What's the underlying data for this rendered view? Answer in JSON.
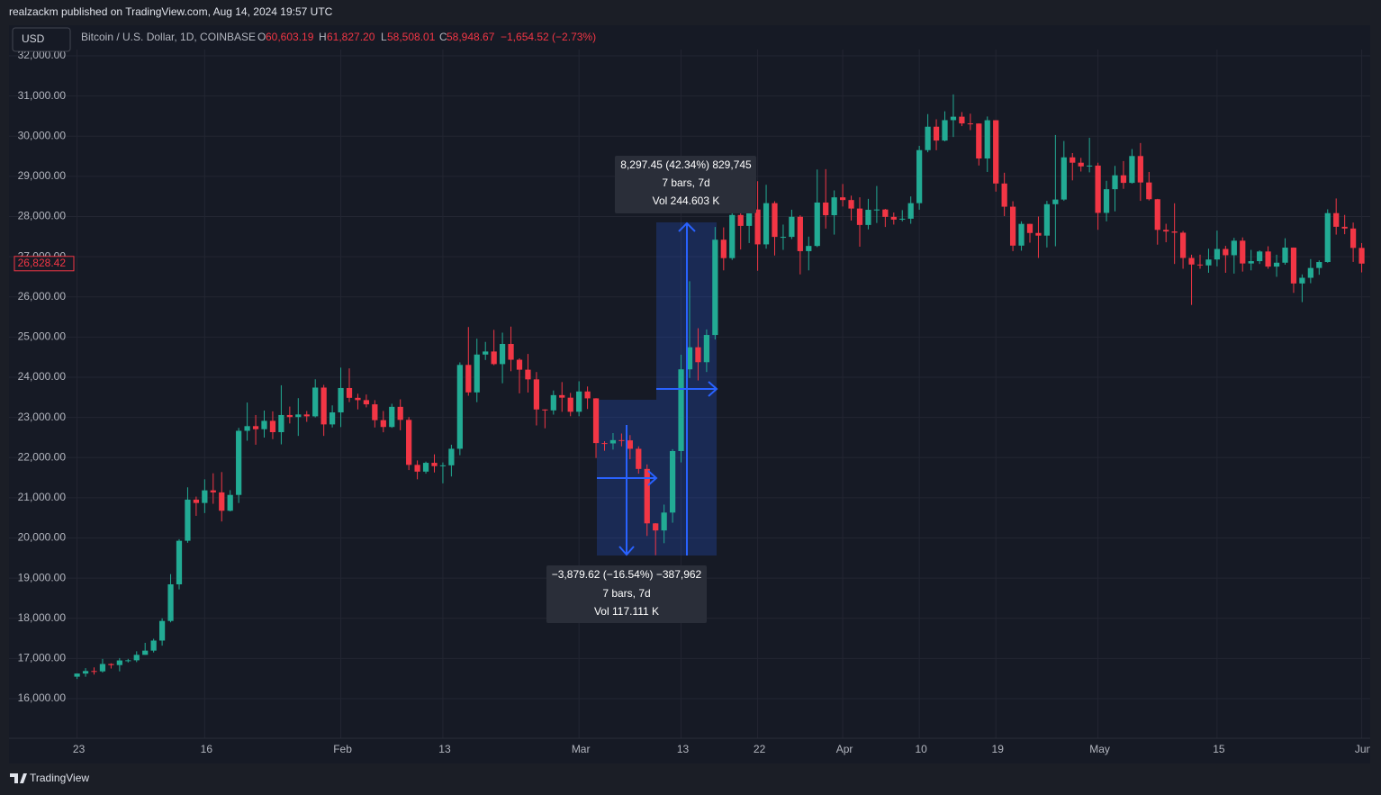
{
  "header": {
    "publisher": "realzackm published on TradingView.com, Aug 14, 2024 19:57 UTC",
    "currency": "USD",
    "symbol": "Bitcoin / U.S. Dollar, 1D, COINBASE",
    "legend": {
      "o_label": "O",
      "o": "60,603.19",
      "h_label": "H",
      "h": "61,827.20",
      "l_label": "L",
      "l": "58,508.01",
      "c_label": "C",
      "c": "58,948.67",
      "change": "−1,654.52 (−2.73%)"
    }
  },
  "footer": {
    "brand": "TradingView"
  },
  "chart_data": {
    "type": "candlestick",
    "up_color": "#22ab94",
    "down_color": "#f23645",
    "grid": true,
    "xlim": [
      "2022-12-24",
      "2023-06-02"
    ],
    "xticks": [
      {
        "value": "2023-01-01",
        "label": "23"
      },
      {
        "value": "2023-01-16",
        "label": "16"
      },
      {
        "value": "2023-02-01",
        "label": "Feb"
      },
      {
        "value": "2023-02-13",
        "label": "13"
      },
      {
        "value": "2023-03-01",
        "label": "Mar"
      },
      {
        "value": "2023-03-13",
        "label": "13"
      },
      {
        "value": "2023-03-22",
        "label": "22"
      },
      {
        "value": "2023-04-01",
        "label": "Apr"
      },
      {
        "value": "2023-04-10",
        "label": "10"
      },
      {
        "value": "2023-04-19",
        "label": "19"
      },
      {
        "value": "2023-05-01",
        "label": "May"
      },
      {
        "value": "2023-05-15",
        "label": "15"
      },
      {
        "value": "2023-06-01",
        "label": "Jun"
      }
    ],
    "ylim": [
      15014,
      32762
    ],
    "yticks": [
      {
        "value": 16000,
        "label": "16,000.00"
      },
      {
        "value": 17000,
        "label": "17,000.00"
      },
      {
        "value": 18000,
        "label": "18,000.00"
      },
      {
        "value": 19000,
        "label": "19,000.00"
      },
      {
        "value": 20000,
        "label": "20,000.00"
      },
      {
        "value": 21000,
        "label": "21,000.00"
      },
      {
        "value": 22000,
        "label": "22,000.00"
      },
      {
        "value": 23000,
        "label": "23,000.00"
      },
      {
        "value": 24000,
        "label": "24,000.00"
      },
      {
        "value": 25000,
        "label": "25,000.00"
      },
      {
        "value": 26000,
        "label": "26,000.00"
      },
      {
        "value": 27000,
        "label": "27,000.00"
      },
      {
        "value": 28000,
        "label": "28,000.00"
      },
      {
        "value": 29000,
        "label": "29,000.00"
      },
      {
        "value": 30000,
        "label": "30,000.00"
      },
      {
        "value": 31000,
        "label": "31,000.00"
      },
      {
        "value": 32000,
        "label": "32,000.00"
      }
    ],
    "last_price": {
      "value": 26828.42,
      "label": "26,828.42"
    },
    "annotations": [
      {
        "lines": [
          "8,297.45 (42.34%) 829,745",
          "7 bars, 7d",
          "Vol 244.603 K"
        ]
      },
      {
        "lines": [
          "−3,879.62 (−16.54%) −387,962",
          "7 bars, 7d",
          "Vol 117.111 K"
        ]
      }
    ],
    "x": [
      "2023-01-01",
      "2023-01-02",
      "2023-01-03",
      "2023-01-04",
      "2023-01-05",
      "2023-01-06",
      "2023-01-07",
      "2023-01-08",
      "2023-01-09",
      "2023-01-10",
      "2023-01-11",
      "2023-01-12",
      "2023-01-13",
      "2023-01-14",
      "2023-01-15",
      "2023-01-16",
      "2023-01-17",
      "2023-01-18",
      "2023-01-19",
      "2023-01-20",
      "2023-01-21",
      "2023-01-22",
      "2023-01-23",
      "2023-01-24",
      "2023-01-25",
      "2023-01-26",
      "2023-01-27",
      "2023-01-28",
      "2023-01-29",
      "2023-01-30",
      "2023-01-31",
      "2023-02-01",
      "2023-02-02",
      "2023-02-03",
      "2023-02-04",
      "2023-02-05",
      "2023-02-06",
      "2023-02-07",
      "2023-02-08",
      "2023-02-09",
      "2023-02-10",
      "2023-02-11",
      "2023-02-12",
      "2023-02-13",
      "2023-02-14",
      "2023-02-15",
      "2023-02-16",
      "2023-02-17",
      "2023-02-18",
      "2023-02-19",
      "2023-02-20",
      "2023-02-21",
      "2023-02-22",
      "2023-02-23",
      "2023-02-24",
      "2023-02-25",
      "2023-02-26",
      "2023-02-27",
      "2023-02-28",
      "2023-03-01",
      "2023-03-02",
      "2023-03-03",
      "2023-03-04",
      "2023-03-05",
      "2023-03-06",
      "2023-03-07",
      "2023-03-08",
      "2023-03-09",
      "2023-03-10",
      "2023-03-11",
      "2023-03-12",
      "2023-03-13",
      "2023-03-14",
      "2023-03-15",
      "2023-03-16",
      "2023-03-17",
      "2023-03-18",
      "2023-03-19",
      "2023-03-20",
      "2023-03-21",
      "2023-03-22",
      "2023-03-23",
      "2023-03-24",
      "2023-03-25",
      "2023-03-26",
      "2023-03-27",
      "2023-03-28",
      "2023-03-29",
      "2023-03-30",
      "2023-03-31",
      "2023-04-01",
      "2023-04-02",
      "2023-04-03",
      "2023-04-04",
      "2023-04-05",
      "2023-04-06",
      "2023-04-07",
      "2023-04-08",
      "2023-04-09",
      "2023-04-10",
      "2023-04-11",
      "2023-04-12",
      "2023-04-13",
      "2023-04-14",
      "2023-04-15",
      "2023-04-16",
      "2023-04-17",
      "2023-04-18",
      "2023-04-19",
      "2023-04-20",
      "2023-04-21",
      "2023-04-22",
      "2023-04-23",
      "2023-04-24",
      "2023-04-25",
      "2023-04-26",
      "2023-04-27",
      "2023-04-28",
      "2023-04-29",
      "2023-04-30",
      "2023-05-01",
      "2023-05-02",
      "2023-05-03",
      "2023-05-04",
      "2023-05-05",
      "2023-05-06",
      "2023-05-07",
      "2023-05-08",
      "2023-05-09",
      "2023-05-10",
      "2023-05-11",
      "2023-05-12",
      "2023-05-13",
      "2023-05-14",
      "2023-05-15",
      "2023-05-16",
      "2023-05-17",
      "2023-05-18",
      "2023-05-19",
      "2023-05-20",
      "2023-05-21",
      "2023-05-22",
      "2023-05-23",
      "2023-05-24",
      "2023-05-25",
      "2023-05-26",
      "2023-05-27",
      "2023-05-28",
      "2023-05-29",
      "2023-05-30",
      "2023-05-31",
      "2023-06-01"
    ],
    "open": [
      16547,
      16625,
      16688,
      16680,
      16863,
      16836,
      16951,
      16955,
      17091,
      17196,
      17446,
      17934,
      18846,
      19930,
      20954,
      20871,
      21185,
      21134,
      20677,
      21071,
      22667,
      22783,
      22707,
      22915,
      22633,
      23060,
      23009,
      23074,
      23027,
      23743,
      22826,
      23125,
      23732,
      23488,
      23431,
      23326,
      22932,
      22762,
      23264,
      22939,
      21819,
      21651,
      21870,
      21788,
      21808,
      22220,
      24307,
      23623,
      24565,
      24641,
      24327,
      24829,
      24436,
      24188,
      23947,
      23198,
      23175,
      23555,
      23492,
      23141,
      23646,
      23475,
      22362,
      22353,
      22435,
      22429,
      22219,
      21718,
      20363,
      20187,
      20632,
      22163,
      24197,
      24746,
      24375,
      25052,
      27423,
      26965,
      28038,
      27767,
      28175,
      27307,
      28333,
      27493,
      27494,
      27994,
      27139,
      27268,
      28348,
      28033,
      28478,
      28411,
      28199,
      27790,
      28168,
      28175,
      27992,
      27923,
      27946,
      28333,
      29653,
      30236,
      29891,
      30399,
      30485,
      30318,
      30315,
      29445,
      30397,
      28822,
      28245,
      27276,
      27817,
      27591,
      27525,
      28307,
      28423,
      29473,
      29340,
      29248,
      29268,
      28091,
      28680,
      29026,
      28838,
      29506,
      28848,
      28431,
      27668,
      27628,
      27598,
      26969,
      26805,
      26784,
      26931,
      27192,
      27037,
      27399,
      26832,
      26890,
      27130,
      26754,
      26851,
      27226,
      26334,
      26476,
      26720,
      26868,
      28085,
      27745,
      27702,
      27219
    ],
    "high": [
      16630,
      16760,
      16780,
      16990,
      16880,
      17010,
      16990,
      17180,
      17390,
      17490,
      18000,
      19100,
      19970,
      21260,
      21030,
      21460,
      21610,
      21640,
      21190,
      22740,
      23370,
      23060,
      23170,
      23150,
      23800,
      23270,
      23480,
      23160,
      23950,
      23810,
      23300,
      24240,
      24220,
      23590,
      23570,
      23430,
      23160,
      23340,
      23450,
      23010,
      21930,
      21900,
      22080,
      21880,
      22320,
      24370,
      25250,
      24960,
      24880,
      25180,
      25110,
      25260,
      24470,
      24580,
      24130,
      23200,
      23670,
      23880,
      23610,
      23900,
      23770,
      23480,
      22410,
      22610,
      22600,
      22560,
      22280,
      21830,
      20370,
      20830,
      22210,
      24560,
      26390,
      25220,
      25190,
      27740,
      27730,
      28420,
      28470,
      28550,
      28880,
      28790,
      28380,
      27800,
      28170,
      28030,
      27500,
      29170,
      29180,
      28650,
      28810,
      28520,
      28480,
      28440,
      28760,
      28190,
      28100,
      28160,
      28500,
      29760,
      30550,
      30420,
      30620,
      31040,
      30600,
      30560,
      30320,
      30490,
      30400,
      29090,
      28380,
      27880,
      27820,
      28000,
      28390,
      30030,
      29880,
      29580,
      29460,
      29960,
      29340,
      28890,
      29260,
      29380,
      29680,
      29830,
      29110,
      28440,
      27820,
      28330,
      27640,
      27050,
      27050,
      27200,
      27650,
      27270,
      27470,
      27480,
      27170,
      27160,
      27260,
      27050,
      27460,
      27230,
      26560,
      26940,
      26910,
      28180,
      28450,
      28040,
      27850,
      27340
    ],
    "low": [
      16490,
      16545,
      16600,
      16650,
      16750,
      16680,
      16900,
      16910,
      17090,
      17150,
      17320,
      17900,
      18720,
      19880,
      20550,
      20620,
      20850,
      20410,
      20660,
      20870,
      22420,
      22320,
      22500,
      22460,
      22330,
      22850,
      22540,
      22890,
      23000,
      22540,
      22750,
      22760,
      23380,
      23200,
      23250,
      22750,
      22630,
      22740,
      22680,
      21690,
      21460,
      21600,
      21630,
      21360,
      21530,
      22060,
      23540,
      23380,
      24430,
      24300,
      23850,
      24150,
      23600,
      23620,
      22800,
      22730,
      23070,
      23140,
      23030,
      23030,
      23210,
      21990,
      22170,
      22200,
      22280,
      21960,
      21600,
      20050,
      19570,
      19870,
      20380,
      21880,
      23980,
      23920,
      24130,
      24940,
      26660,
      26920,
      27180,
      27340,
      26650,
      27200,
      27030,
      27170,
      27440,
      26560,
      26660,
      27240,
      27700,
      27550,
      28250,
      27900,
      27250,
      27680,
      27840,
      27740,
      27800,
      27880,
      27820,
      28170,
      29600,
      29650,
      29870,
      29980,
      30250,
      30150,
      29270,
      29110,
      28620,
      28010,
      27140,
      27150,
      27350,
      26970,
      27230,
      27260,
      28390,
      28900,
      29120,
      29100,
      27670,
      27880,
      28130,
      28690,
      28820,
      28390,
      28400,
      27300,
      27360,
      26820,
      26700,
      25800,
      26700,
      26600,
      26760,
      26600,
      26580,
      26630,
      26660,
      26820,
      26700,
      26500,
      26800,
      26100,
      25870,
      26340,
      26550,
      26850,
      27550,
      27560,
      26870,
      26610
    ],
    "close": [
      16625,
      16688,
      16680,
      16863,
      16836,
      16951,
      16955,
      17091,
      17196,
      17446,
      17934,
      18846,
      19930,
      20954,
      20871,
      21185,
      21134,
      20677,
      21071,
      22667,
      22783,
      22707,
      22915,
      22633,
      23060,
      23009,
      23074,
      23027,
      23743,
      22826,
      23125,
      23732,
      23488,
      23431,
      23326,
      22932,
      22762,
      23264,
      22939,
      21819,
      21651,
      21870,
      21788,
      21808,
      22220,
      24307,
      23623,
      24565,
      24641,
      24327,
      24829,
      24436,
      24188,
      23947,
      23198,
      23175,
      23555,
      23492,
      23141,
      23646,
      23475,
      22362,
      22353,
      22435,
      22429,
      22219,
      21718,
      20363,
      20187,
      20632,
      22163,
      24197,
      24746,
      24375,
      25052,
      27423,
      26965,
      28038,
      27767,
      28175,
      27307,
      28333,
      27493,
      27494,
      27994,
      27139,
      27268,
      28348,
      28033,
      28478,
      28411,
      28199,
      27790,
      28168,
      28175,
      27992,
      27923,
      27946,
      28333,
      29653,
      30236,
      29891,
      30399,
      30485,
      30318,
      30315,
      29445,
      30397,
      28822,
      28245,
      27276,
      27817,
      27591,
      27525,
      28307,
      28423,
      29473,
      29340,
      29248,
      29268,
      28091,
      28680,
      29026,
      28838,
      29506,
      28848,
      28431,
      27668,
      27628,
      27598,
      26969,
      26805,
      26784,
      26931,
      27192,
      27037,
      27399,
      26832,
      26890,
      27130,
      26754,
      26851,
      27226,
      26334,
      26476,
      26720,
      26868,
      28085,
      27745,
      27702,
      27219,
      26828.42
    ]
  }
}
